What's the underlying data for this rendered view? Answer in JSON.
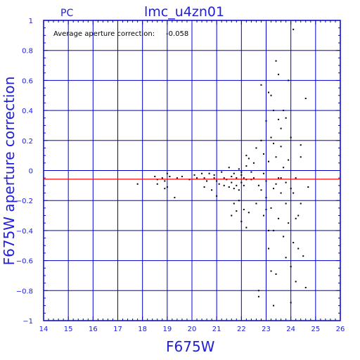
{
  "header": {
    "corner_label": "PC",
    "title": "lmc_u4zn01"
  },
  "annotation": {
    "label": "Average aperture correction:",
    "value": "-0.058"
  },
  "colors": {
    "axis_and_grid": "#0000cc",
    "reference_line": "#ff0000",
    "points": "#000000",
    "background": "#ffffff"
  },
  "chart_data": {
    "type": "scatter",
    "title": "lmc_u4zn01",
    "xlabel": "F675W",
    "ylabel": "F675W aperture correction",
    "xlim": [
      14,
      26
    ],
    "ylim": [
      -1,
      1
    ],
    "x_ticks": [
      "14",
      "15",
      "16",
      "17",
      "18",
      "19",
      "20",
      "21",
      "22",
      "23",
      "24",
      "25",
      "26"
    ],
    "y_ticks": [
      "1",
      "0.8",
      "0.6",
      "0.4",
      "0.2",
      "0",
      "−0.2",
      "−0.4",
      "−0.6",
      "−0.8",
      "−1"
    ],
    "y_tick_values": [
      1,
      0.8,
      0.6,
      0.4,
      0.2,
      0,
      -0.2,
      -0.4,
      -0.6,
      -0.8,
      -1
    ],
    "grid": true,
    "reference_line": -0.058,
    "points": [
      [
        17.8,
        -0.09
      ],
      [
        18.5,
        -0.04
      ],
      [
        18.6,
        -0.06
      ],
      [
        18.6,
        -0.09
      ],
      [
        18.8,
        -0.05
      ],
      [
        18.9,
        -0.07
      ],
      [
        18.9,
        -0.12
      ],
      [
        19.0,
        -0.02
      ],
      [
        19.0,
        -0.11
      ],
      [
        19.1,
        -0.04
      ],
      [
        19.3,
        -0.18
      ],
      [
        19.4,
        -0.05
      ],
      [
        19.6,
        -0.04
      ],
      [
        19.9,
        -0.06
      ],
      [
        20.1,
        -0.03
      ],
      [
        20.2,
        -0.05
      ],
      [
        20.4,
        -0.02
      ],
      [
        20.5,
        -0.05
      ],
      [
        20.5,
        -0.11
      ],
      [
        20.6,
        -0.07
      ],
      [
        20.7,
        -0.02
      ],
      [
        20.8,
        -0.13
      ],
      [
        20.9,
        -0.03
      ],
      [
        20.9,
        -0.05
      ],
      [
        21.0,
        -0.07
      ],
      [
        21.0,
        -0.17
      ],
      [
        21.1,
        -0.09
      ],
      [
        21.2,
        -0.01
      ],
      [
        21.3,
        -0.05
      ],
      [
        21.3,
        -0.1
      ],
      [
        21.4,
        -0.06
      ],
      [
        21.5,
        0.02
      ],
      [
        21.5,
        -0.11
      ],
      [
        21.6,
        -0.04
      ],
      [
        21.6,
        -0.08
      ],
      [
        21.7,
        -0.02
      ],
      [
        21.7,
        -0.12
      ],
      [
        21.8,
        -0.05
      ],
      [
        21.8,
        -0.1
      ],
      [
        21.9,
        0.01
      ],
      [
        21.9,
        -0.13
      ],
      [
        22.0,
        -0.01
      ],
      [
        22.0,
        -0.03
      ],
      [
        22.0,
        -0.08
      ],
      [
        22.1,
        -0.05
      ],
      [
        22.1,
        -0.1
      ],
      [
        22.2,
        -0.06
      ],
      [
        22.2,
        0.03
      ],
      [
        21.6,
        -0.3
      ],
      [
        21.7,
        -0.22
      ],
      [
        21.8,
        -0.27
      ],
      [
        21.9,
        -0.2
      ],
      [
        22.0,
        -0.34
      ],
      [
        22.1,
        -0.26
      ],
      [
        22.2,
        -0.38
      ],
      [
        22.3,
        -0.28
      ],
      [
        22.2,
        0.1
      ],
      [
        22.3,
        0.08
      ],
      [
        22.4,
        -0.01
      ],
      [
        22.5,
        -0.05
      ],
      [
        22.6,
        0.15
      ],
      [
        22.7,
        -0.1
      ],
      [
        22.8,
        0.2
      ],
      [
        22.9,
        -0.3
      ],
      [
        22.8,
        0.57
      ],
      [
        22.9,
        -0.02
      ],
      [
        23.0,
        -0.07
      ],
      [
        23.0,
        0.33
      ],
      [
        23.0,
        -0.18
      ],
      [
        23.1,
        0.06
      ],
      [
        23.1,
        -0.52
      ],
      [
        23.2,
        0.5
      ],
      [
        23.2,
        -0.25
      ],
      [
        23.3,
        0.18
      ],
      [
        23.3,
        -0.4
      ],
      [
        23.4,
        0.09
      ],
      [
        23.4,
        -0.09
      ],
      [
        23.4,
        -0.69
      ],
      [
        23.5,
        0.34
      ],
      [
        23.5,
        -0.05
      ],
      [
        23.5,
        -0.32
      ],
      [
        23.6,
        0.28
      ],
      [
        23.6,
        -0.15
      ],
      [
        23.7,
        0.02
      ],
      [
        23.7,
        -0.44
      ],
      [
        23.8,
        0.35
      ],
      [
        23.8,
        -0.22
      ],
      [
        23.9,
        0.07
      ],
      [
        23.9,
        -0.35
      ],
      [
        24.0,
        0.22
      ],
      [
        24.0,
        -0.12
      ],
      [
        24.0,
        -0.64
      ],
      [
        24.1,
        -0.48
      ],
      [
        24.1,
        0.94
      ],
      [
        24.2,
        -0.74
      ],
      [
        24.3,
        -0.52
      ],
      [
        24.4,
        0.09
      ],
      [
        24.5,
        -0.57
      ],
      [
        24.6,
        -0.78
      ],
      [
        24.6,
        0.48
      ],
      [
        24.7,
        -0.11
      ],
      [
        23.4,
        0.73
      ],
      [
        23.5,
        0.64
      ],
      [
        23.9,
        0.6
      ],
      [
        23.1,
        0.52
      ],
      [
        22.7,
        -0.8
      ],
      [
        22.7,
        -0.84
      ],
      [
        23.8,
        -0.58
      ],
      [
        23.2,
        -0.67
      ],
      [
        23.3,
        -0.9
      ],
      [
        24.0,
        -0.88
      ],
      [
        24.2,
        -0.32
      ],
      [
        24.3,
        -0.3
      ],
      [
        22.4,
        -0.06
      ],
      [
        22.6,
        -0.22
      ],
      [
        22.8,
        -0.13
      ],
      [
        23.0,
        -0.26
      ],
      [
        23.1,
        -0.4
      ],
      [
        23.3,
        -0.12
      ],
      [
        23.6,
        -0.05
      ],
      [
        23.8,
        -0.08
      ],
      [
        24.1,
        -0.15
      ],
      [
        24.2,
        -0.05
      ],
      [
        24.4,
        -0.22
      ],
      [
        22.5,
        0.05
      ],
      [
        22.9,
        0.11
      ],
      [
        23.2,
        0.22
      ],
      [
        23.3,
        0.4
      ],
      [
        23.6,
        0.16
      ],
      [
        23.7,
        0.4
      ],
      [
        24.4,
        0.17
      ]
    ]
  }
}
